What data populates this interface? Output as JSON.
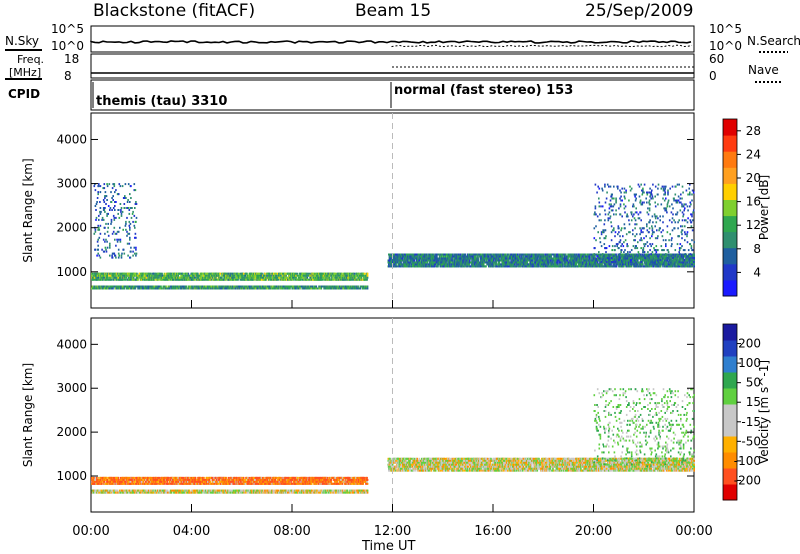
{
  "header": {
    "title": "Blackstone (fitACF)",
    "beam": "Beam 15",
    "date": "25/Sep/2009"
  },
  "aux_panels": {
    "nsky": {
      "label": "N.Sky",
      "right_label": "N.Search",
      "ticks_left": [
        "10^5",
        "10^0"
      ],
      "ticks_right": [
        "10^5",
        "10^0"
      ]
    },
    "freq": {
      "label_line1": "Freq.",
      "label_line2": "[MHz]",
      "ticks_left": [
        "18",
        "8"
      ],
      "right_label": "Nave",
      "ticks_right": [
        "60",
        "0"
      ]
    },
    "cpid": {
      "label": "CPID",
      "modes": [
        "themis (tau) 3310",
        "normal (fast stereo) 153"
      ]
    }
  },
  "colors": {
    "power_scale": [
      "#1a1aff",
      "#2038c8",
      "#1f5f9f",
      "#2f8f6f",
      "#2fa74f",
      "#7fcf2f",
      "#ffcf00",
      "#ffa020",
      "#ff7a10",
      "#ff3b10",
      "#e00000"
    ],
    "velocity_scale": [
      "#e00000",
      "#ff5020",
      "#ff8c00",
      "#ffb000",
      "#c8c8c8",
      "#c8c8c8",
      "#60d040",
      "#2fa74f",
      "#2f7fcf",
      "#2040c0",
      "#1a1a9f"
    ]
  },
  "chart_data": [
    {
      "type": "heatmap",
      "name": "Power",
      "xlabel": "Time UT",
      "ylabel": "Slant Range [km]",
      "x_ticks": [
        "00:00",
        "04:00",
        "08:00",
        "12:00",
        "16:00",
        "20:00",
        "00:00"
      ],
      "xlim_hours": [
        0,
        24
      ],
      "y_ticks": [
        "1000",
        "2000",
        "3000",
        "4000"
      ],
      "ylim_km": [
        180,
        4600
      ],
      "colorbar_label": "Power [dB]",
      "colorbar_ticks": [
        "4",
        "8",
        "12",
        "16",
        "20",
        "24",
        "28"
      ],
      "colorbar_range": [
        0,
        30
      ],
      "features": [
        {
          "description": "E/F region band",
          "t0": 0.0,
          "t1": 11.0,
          "range_km": [
            800,
            1000
          ],
          "power_db": 12
        },
        {
          "description": "near range band",
          "t0": 0.0,
          "t1": 11.0,
          "range_km": [
            600,
            700
          ],
          "power_db": 10
        },
        {
          "description": "early high range echoes",
          "t0": 0.1,
          "t1": 1.8,
          "range_km": [
            1300,
            3000
          ],
          "power_db": 6
        },
        {
          "description": "post-noon band",
          "t0": 11.8,
          "t1": 24.0,
          "range_km": [
            1100,
            1400
          ],
          "power_db": 8
        },
        {
          "description": "late evening echoes",
          "t0": 20.0,
          "t1": 24.0,
          "range_km": [
            1200,
            3000
          ],
          "power_db": 6
        }
      ]
    },
    {
      "type": "heatmap",
      "name": "Velocity",
      "xlabel": "Time UT",
      "ylabel": "Slant Range [km]",
      "x_ticks": [
        "00:00",
        "04:00",
        "08:00",
        "12:00",
        "16:00",
        "20:00",
        "00:00"
      ],
      "xlim_hours": [
        0,
        24
      ],
      "y_ticks": [
        "1000",
        "2000",
        "3000",
        "4000"
      ],
      "ylim_km": [
        180,
        4600
      ],
      "colorbar_label": "Velocity [m s^-1]",
      "colorbar_ticks": [
        "200",
        "100",
        "50",
        "15",
        "-15",
        "-50",
        "-100",
        "-200"
      ],
      "features": [
        {
          "description": "E/F region band",
          "t0": 0.0,
          "t1": 11.0,
          "range_km": [
            800,
            1000
          ],
          "velocity": -50
        },
        {
          "description": "near range band",
          "t0": 0.0,
          "t1": 11.0,
          "range_km": [
            600,
            700
          ],
          "velocity": 0
        },
        {
          "description": "post-noon band",
          "t0": 11.8,
          "t1": 24.0,
          "range_km": [
            1100,
            1400
          ],
          "velocity": 0
        },
        {
          "description": "late evening echoes",
          "t0": 20.0,
          "t1": 24.0,
          "range_km": [
            1200,
            3000
          ],
          "velocity": 30
        }
      ]
    }
  ]
}
